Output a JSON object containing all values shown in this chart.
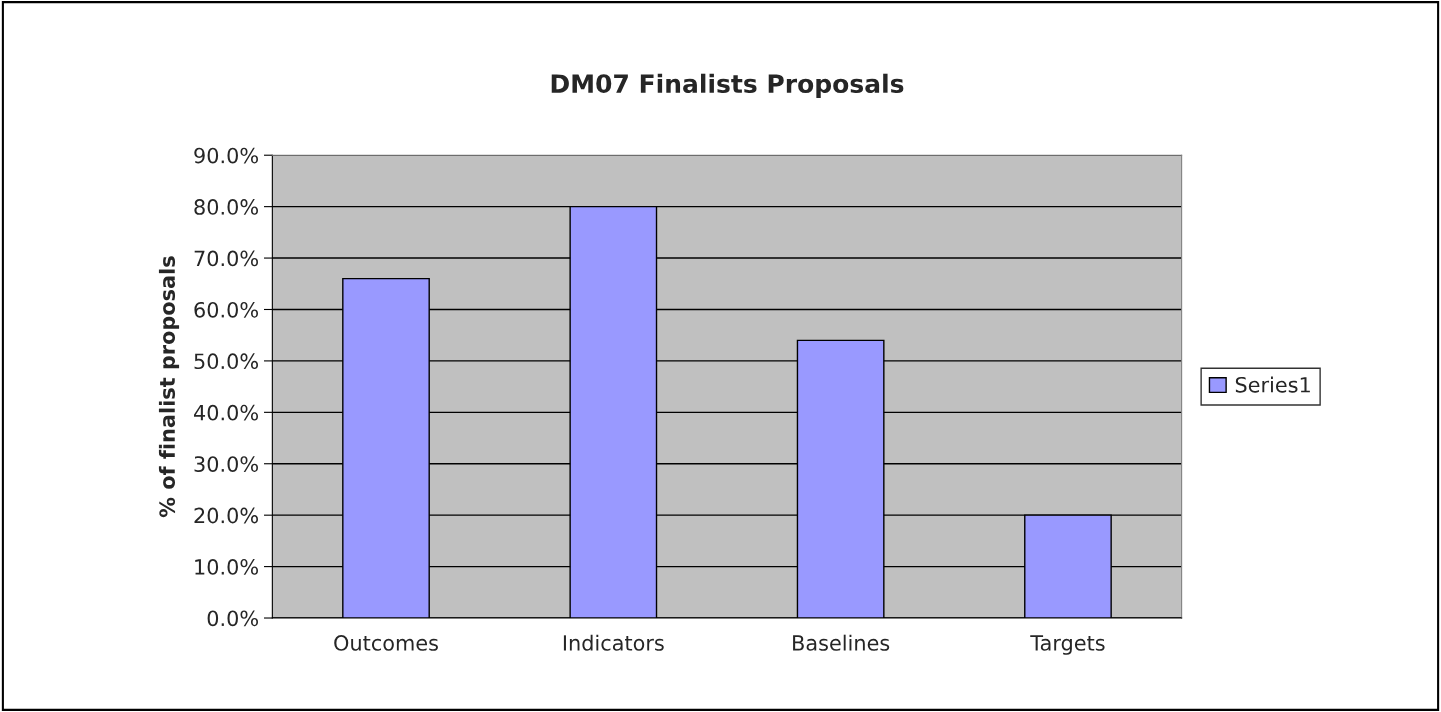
{
  "chart_data": {
    "type": "bar",
    "title": "DM07 Finalists Proposals",
    "ylabel": "% of finalist proposals",
    "categories": [
      "Outcomes",
      "Indicators",
      "Baselines",
      "Targets"
    ],
    "series": [
      {
        "name": "Series1",
        "color": "#9999ff",
        "values": [
          66,
          80,
          54,
          20
        ]
      }
    ],
    "ylim": [
      0,
      90
    ],
    "yticks": [
      {
        "value": 0,
        "label": "0.0%"
      },
      {
        "value": 10,
        "label": "10.0%"
      },
      {
        "value": 20,
        "label": "20.0%"
      },
      {
        "value": 30,
        "label": "30.0%"
      },
      {
        "value": 40,
        "label": "40.0%"
      },
      {
        "value": 50,
        "label": "50.0%"
      },
      {
        "value": 60,
        "label": "60.0%"
      },
      {
        "value": 70,
        "label": "70.0%"
      },
      {
        "value": 80,
        "label": "80.0%"
      },
      {
        "value": 90,
        "label": "90.0%"
      }
    ],
    "grid": "y",
    "legend": "right"
  }
}
